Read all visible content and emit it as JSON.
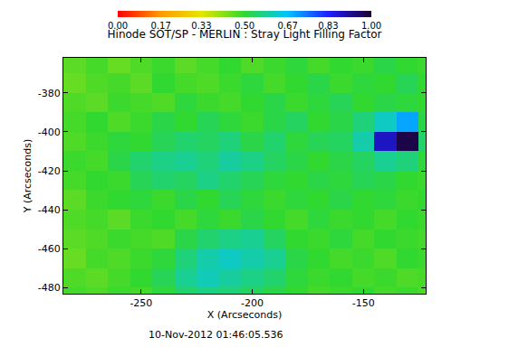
{
  "chart_data": {
    "type": "heatmap",
    "title": "Hinode SOT/SP - MERLIN : Stray Light Filling Factor",
    "x_label": "X (Arcseconds)",
    "y_label": "Y (Arcseconds)",
    "annotations": [
      "10-Nov-2012 01:46:05.536"
    ],
    "xlim": [
      -285,
      -122
    ],
    "ylim": [
      -483,
      -362
    ],
    "xticks": [
      -250,
      -200,
      -150
    ],
    "yticks": [
      -380,
      -400,
      -420,
      -440,
      -460,
      -480
    ],
    "x": [
      -280,
      -270,
      -260,
      -250,
      -240,
      -230,
      -220,
      -210,
      -200,
      -190,
      -180,
      -170,
      -160,
      -150,
      -140,
      -130,
      -120
    ],
    "y": [
      -365,
      -375,
      -385,
      -395,
      -405,
      -415,
      -425,
      -435,
      -445,
      -455,
      -465,
      -475,
      -485
    ],
    "cells": [
      [
        0.46,
        0.48,
        0.45,
        0.47,
        0.49,
        0.46,
        0.48,
        0.5,
        0.47,
        0.49,
        0.51,
        0.48,
        0.5,
        0.49,
        0.52,
        0.5,
        0.49
      ],
      [
        0.45,
        0.47,
        0.48,
        0.46,
        0.5,
        0.48,
        0.47,
        0.49,
        0.51,
        0.48,
        0.5,
        0.52,
        0.49,
        0.51,
        0.5,
        0.53,
        0.5
      ],
      [
        0.47,
        0.46,
        0.49,
        0.48,
        0.47,
        0.51,
        0.49,
        0.48,
        0.5,
        0.52,
        0.49,
        0.51,
        0.53,
        0.5,
        0.52,
        0.51,
        0.5
      ],
      [
        0.48,
        0.5,
        0.47,
        0.49,
        0.52,
        0.5,
        0.53,
        0.51,
        0.49,
        0.52,
        0.54,
        0.5,
        0.52,
        0.56,
        0.62,
        0.7,
        0.52
      ],
      [
        0.47,
        0.49,
        0.51,
        0.5,
        0.53,
        0.55,
        0.54,
        0.56,
        0.52,
        0.55,
        0.51,
        0.53,
        0.54,
        0.6,
        0.88,
        0.98,
        0.55
      ],
      [
        0.49,
        0.48,
        0.52,
        0.55,
        0.57,
        0.58,
        0.56,
        0.59,
        0.57,
        0.54,
        0.52,
        0.5,
        0.52,
        0.54,
        0.58,
        0.56,
        0.51
      ],
      [
        0.48,
        0.5,
        0.49,
        0.53,
        0.55,
        0.54,
        0.57,
        0.55,
        0.53,
        0.51,
        0.5,
        0.52,
        0.51,
        0.53,
        0.52,
        0.5,
        0.49
      ],
      [
        0.46,
        0.49,
        0.5,
        0.51,
        0.49,
        0.52,
        0.5,
        0.53,
        0.51,
        0.49,
        0.51,
        0.5,
        0.52,
        0.5,
        0.51,
        0.49,
        0.5
      ],
      [
        0.47,
        0.48,
        0.46,
        0.49,
        0.5,
        0.48,
        0.51,
        0.49,
        0.52,
        0.5,
        0.48,
        0.51,
        0.49,
        0.5,
        0.48,
        0.5,
        0.49
      ],
      [
        0.46,
        0.47,
        0.49,
        0.48,
        0.47,
        0.52,
        0.55,
        0.57,
        0.58,
        0.54,
        0.5,
        0.49,
        0.51,
        0.48,
        0.5,
        0.49,
        0.48
      ],
      [
        0.45,
        0.48,
        0.47,
        0.49,
        0.51,
        0.56,
        0.6,
        0.62,
        0.6,
        0.58,
        0.52,
        0.5,
        0.48,
        0.49,
        0.47,
        0.5,
        0.49
      ],
      [
        0.47,
        0.46,
        0.48,
        0.5,
        0.53,
        0.58,
        0.61,
        0.59,
        0.57,
        0.55,
        0.51,
        0.49,
        0.5,
        0.48,
        0.49,
        0.47,
        0.48
      ],
      [
        0.48,
        0.47,
        0.49,
        0.48,
        0.51,
        0.55,
        0.57,
        0.56,
        0.54,
        0.52,
        0.5,
        0.48,
        0.49,
        0.5,
        0.48,
        0.49,
        0.47
      ]
    ],
    "colorbar": {
      "range": [
        0,
        1
      ],
      "ticks": [
        {
          "value": 0,
          "label": "0.00"
        },
        {
          "value": 0.17,
          "label": "0.17"
        },
        {
          "value": 0.33,
          "label": "0.33"
        },
        {
          "value": 0.5,
          "label": "0.50"
        },
        {
          "value": 0.67,
          "label": "0.67"
        },
        {
          "value": 0.83,
          "label": "0.83"
        },
        {
          "value": 1,
          "label": "1.00"
        }
      ]
    }
  }
}
